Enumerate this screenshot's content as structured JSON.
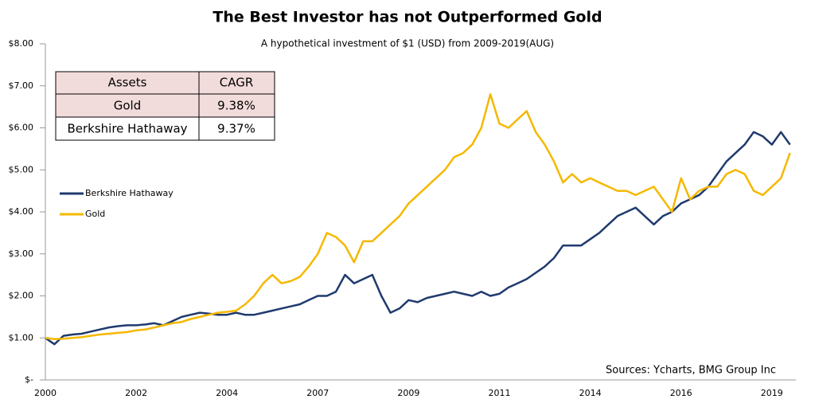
{
  "chart_data": {
    "type": "line",
    "title": "The Best Investor has not Outperformed Gold",
    "subtitle": "A hypothetical investment of $1 (USD) from 2009-2019(AUG)",
    "source": "Sources: Ycharts, BMG Group Inc",
    "table": {
      "header": [
        "Assets",
        "CAGR"
      ],
      "rows": [
        [
          "Gold",
          "9.38%"
        ],
        [
          "Berkshire Hathaway",
          "9.37%"
        ]
      ]
    },
    "categories": [
      "2000",
      null,
      null,
      null,
      null,
      null,
      null,
      null,
      null,
      null,
      "2002",
      null,
      null,
      null,
      null,
      null,
      null,
      null,
      null,
      null,
      "2004",
      null,
      null,
      null,
      null,
      null,
      null,
      null,
      null,
      null,
      "2007",
      null,
      null,
      null,
      null,
      null,
      null,
      null,
      null,
      null,
      "2009",
      null,
      null,
      null,
      null,
      null,
      null,
      null,
      null,
      null,
      "2011",
      null,
      null,
      null,
      null,
      null,
      null,
      null,
      null,
      null,
      "2014",
      null,
      null,
      null,
      null,
      null,
      null,
      null,
      null,
      null,
      "2016",
      null,
      null,
      null,
      null,
      null,
      null,
      null,
      null,
      null,
      "2019",
      null,
      null
    ],
    "series": [
      {
        "name": "Berkshire Hathaway",
        "color": "#1f3a6e",
        "values": [
          1.0,
          0.85,
          1.05,
          1.08,
          1.1,
          1.15,
          1.2,
          1.25,
          1.28,
          1.3,
          1.3,
          1.32,
          1.35,
          1.3,
          1.4,
          1.5,
          1.55,
          1.6,
          1.58,
          1.55,
          1.55,
          1.6,
          1.55,
          1.55,
          1.6,
          1.65,
          1.7,
          1.75,
          1.8,
          1.9,
          2.0,
          2.0,
          2.1,
          2.5,
          2.3,
          2.4,
          2.5,
          2.0,
          1.6,
          1.7,
          1.9,
          1.85,
          1.95,
          2.0,
          2.05,
          2.1,
          2.05,
          2.0,
          2.1,
          2.0,
          2.05,
          2.2,
          2.3,
          2.4,
          2.55,
          2.7,
          2.9,
          3.2,
          3.2,
          3.2,
          3.35,
          3.5,
          3.7,
          3.9,
          4.0,
          4.1,
          3.9,
          3.7,
          3.9,
          4.0,
          4.2,
          4.3,
          4.4,
          4.6,
          4.9,
          5.2,
          5.4,
          5.6,
          5.9,
          5.8,
          5.6,
          5.9,
          5.6
        ]
      },
      {
        "name": "Gold",
        "color": "#f5b800",
        "values": [
          1.0,
          0.97,
          0.98,
          1.0,
          1.02,
          1.05,
          1.08,
          1.1,
          1.12,
          1.14,
          1.18,
          1.2,
          1.25,
          1.3,
          1.35,
          1.38,
          1.45,
          1.5,
          1.55,
          1.6,
          1.62,
          1.65,
          1.8,
          2.0,
          2.3,
          2.5,
          2.3,
          2.35,
          2.45,
          2.7,
          3.0,
          3.5,
          3.4,
          3.2,
          2.8,
          3.3,
          3.3,
          3.5,
          3.7,
          3.9,
          4.2,
          4.4,
          4.6,
          4.8,
          5.0,
          5.3,
          5.4,
          5.6,
          6.0,
          6.8,
          6.1,
          6.0,
          6.2,
          6.4,
          5.9,
          5.6,
          5.2,
          4.7,
          4.9,
          4.7,
          4.8,
          4.7,
          4.6,
          4.5,
          4.5,
          4.4,
          4.5,
          4.6,
          4.3,
          4.0,
          4.8,
          4.3,
          4.5,
          4.6,
          4.6,
          4.9,
          5.0,
          4.9,
          4.5,
          4.4,
          4.6,
          4.8,
          5.4
        ]
      }
    ],
    "ylim": [
      0,
      8
    ],
    "yticks": [
      {
        "value": 0,
        "label": "$-"
      },
      {
        "value": 1,
        "label": "$1.00"
      },
      {
        "value": 2,
        "label": "$2.00"
      },
      {
        "value": 3,
        "label": "$3.00"
      },
      {
        "value": 4,
        "label": "$4.00"
      },
      {
        "value": 5,
        "label": "$5.00"
      },
      {
        "value": 6,
        "label": "$6.00"
      },
      {
        "value": 7,
        "label": "$7.00"
      },
      {
        "value": 8,
        "label": "$8.00"
      }
    ],
    "grid": false
  }
}
